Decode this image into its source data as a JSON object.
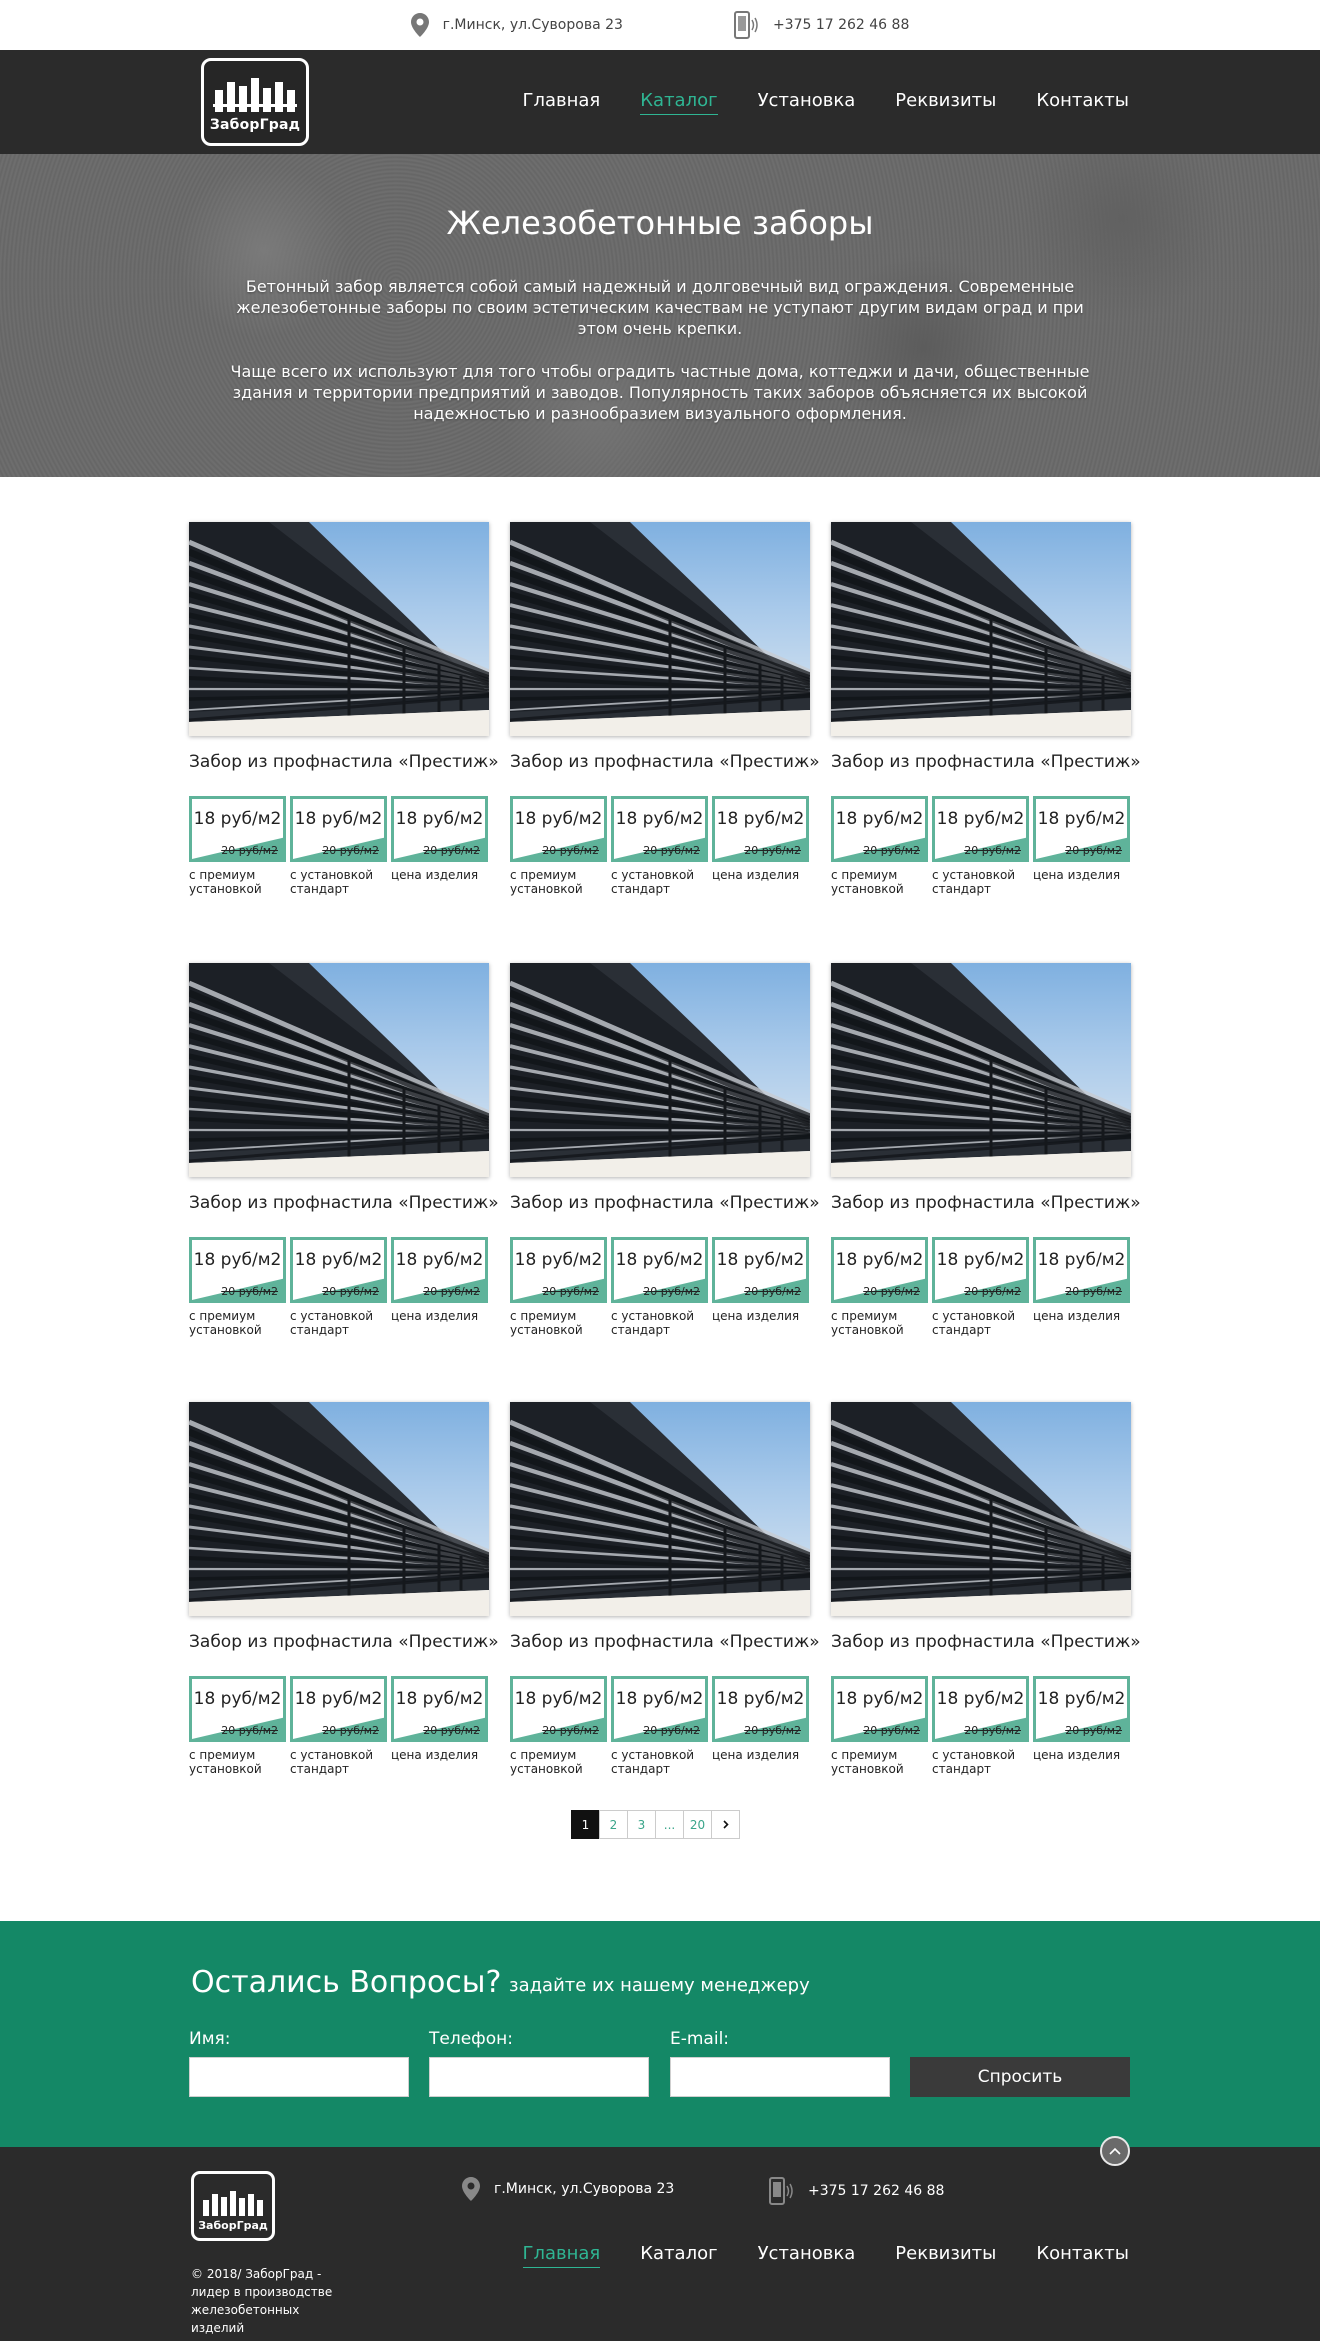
{
  "topbar": {
    "address": "г.Минск, ул.Суворова 23",
    "phone": "+375 17 262 46 88"
  },
  "brand": {
    "name": "ЗаборГрад"
  },
  "nav": [
    {
      "label": "Главная",
      "active": false
    },
    {
      "label": "Каталог",
      "active": true
    },
    {
      "label": "Установка",
      "active": false
    },
    {
      "label": "Реквизиты",
      "active": false
    },
    {
      "label": "Контакты",
      "active": false
    }
  ],
  "hero": {
    "title": "Железобетонные заборы",
    "p1": "Бетонный забор является собой самый надежный и долговечный вид ограждения. Современные железобетонные заборы по своим эстетическим качествам не уступают другим видам оград и при этом очень крепки.",
    "p2": "Чаще всего их используют для того чтобы оградить частные дома, коттеджи и дачи, общественные здания и территории предприятий и заводов. Популярность таких заборов объясняется их высокой надежностью и разнообразием визуального оформления."
  },
  "products": [
    {
      "title": "Забор из профнастила «Престиж»",
      "prices": [
        {
          "current": "18 руб/м2",
          "old": "20 руб/м2",
          "label": "с премиум установкой"
        },
        {
          "current": "18 руб/м2",
          "old": "20 руб/м2",
          "label": "с установкой стандарт"
        },
        {
          "current": "18 руб/м2",
          "old": "20 руб/м2",
          "label": "цена изделия"
        }
      ]
    },
    {
      "title": "Забор из профнастила «Престиж»",
      "prices": [
        {
          "current": "18 руб/м2",
          "old": "20 руб/м2",
          "label": "с премиум установкой"
        },
        {
          "current": "18 руб/м2",
          "old": "20 руб/м2",
          "label": "с установкой стандарт"
        },
        {
          "current": "18 руб/м2",
          "old": "20 руб/м2",
          "label": "цена изделия"
        }
      ]
    },
    {
      "title": "Забор из профнастила «Престиж»",
      "prices": [
        {
          "current": "18 руб/м2",
          "old": "20 руб/м2",
          "label": "с премиум установкой"
        },
        {
          "current": "18 руб/м2",
          "old": "20 руб/м2",
          "label": "с установкой стандарт"
        },
        {
          "current": "18 руб/м2",
          "old": "20 руб/м2",
          "label": "цена изделия"
        }
      ]
    },
    {
      "title": "Забор из профнастила «Престиж»",
      "prices": [
        {
          "current": "18 руб/м2",
          "old": "20 руб/м2",
          "label": "с премиум установкой"
        },
        {
          "current": "18 руб/м2",
          "old": "20 руб/м2",
          "label": "с установкой стандарт"
        },
        {
          "current": "18 руб/м2",
          "old": "20 руб/м2",
          "label": "цена изделия"
        }
      ]
    },
    {
      "title": "Забор из профнастила «Престиж»",
      "prices": [
        {
          "current": "18 руб/м2",
          "old": "20 руб/м2",
          "label": "с премиум установкой"
        },
        {
          "current": "18 руб/м2",
          "old": "20 руб/м2",
          "label": "с установкой стандарт"
        },
        {
          "current": "18 руб/м2",
          "old": "20 руб/м2",
          "label": "цена изделия"
        }
      ]
    },
    {
      "title": "Забор из профнастила «Престиж»",
      "prices": [
        {
          "current": "18 руб/м2",
          "old": "20 руб/м2",
          "label": "с премиум установкой"
        },
        {
          "current": "18 руб/м2",
          "old": "20 руб/м2",
          "label": "с установкой стандарт"
        },
        {
          "current": "18 руб/м2",
          "old": "20 руб/м2",
          "label": "цена изделия"
        }
      ]
    },
    {
      "title": "Забор из профнастила «Престиж»",
      "prices": [
        {
          "current": "18 руб/м2",
          "old": "20 руб/м2",
          "label": "с премиум установкой"
        },
        {
          "current": "18 руб/м2",
          "old": "20 руб/м2",
          "label": "с установкой стандарт"
        },
        {
          "current": "18 руб/м2",
          "old": "20 руб/м2",
          "label": "цена изделия"
        }
      ]
    },
    {
      "title": "Забор из профнастила «Престиж»",
      "prices": [
        {
          "current": "18 руб/м2",
          "old": "20 руб/м2",
          "label": "с премиум установкой"
        },
        {
          "current": "18 руб/м2",
          "old": "20 руб/м2",
          "label": "с установкой стандарт"
        },
        {
          "current": "18 руб/м2",
          "old": "20 руб/м2",
          "label": "цена изделия"
        }
      ]
    },
    {
      "title": "Забор из профнастила «Престиж»",
      "prices": [
        {
          "current": "18 руб/м2",
          "old": "20 руб/м2",
          "label": "с премиум установкой"
        },
        {
          "current": "18 руб/м2",
          "old": "20 руб/м2",
          "label": "с установкой стандарт"
        },
        {
          "current": "18 руб/м2",
          "old": "20 руб/м2",
          "label": "цена изделия"
        }
      ]
    }
  ],
  "pagination": {
    "pages": [
      "1",
      "2",
      "3",
      "...",
      "20"
    ],
    "current": "1",
    "next_icon": "chevron-right-icon"
  },
  "contact": {
    "title": "Остались Вопросы?",
    "subtitle": "задайте их нашему менеджеру",
    "name_label": "Имя:",
    "phone_label": "Телефон:",
    "email_label": "E-mail:",
    "submit": "Спросить"
  },
  "footer": {
    "copyright": "© 2018/ ЗаборГрад - лидер в производстве железобетонных изделий",
    "address": "г.Минск, ул.Суворова 23",
    "phone": "+375 17 262 46 88"
  },
  "colors": {
    "accent": "#2fb593",
    "header_bg": "#2b2b2b",
    "contact_bg": "#148866",
    "price_border": "#5fb39a"
  }
}
